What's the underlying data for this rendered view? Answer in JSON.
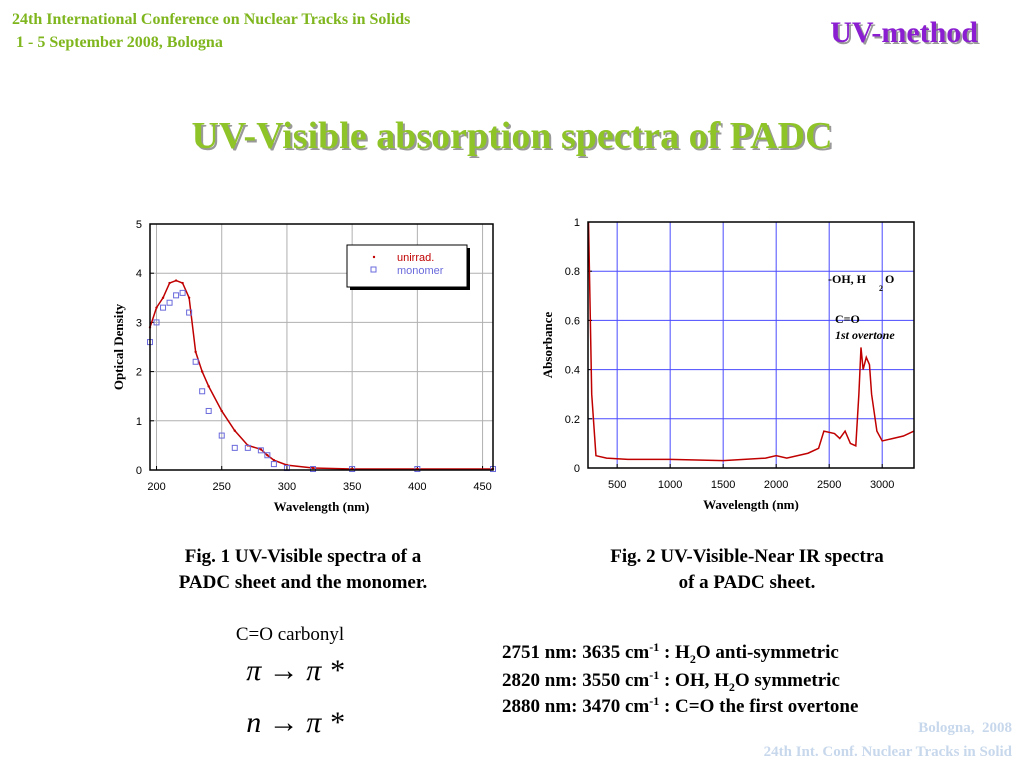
{
  "header": {
    "conference": "24th International Conference on Nuclear Tracks in Solids",
    "dates": " 1 - 5 September 2008, Bologna",
    "section": "UV-method"
  },
  "title": "UV-Visible absorption spectra of PADC",
  "chart_data": [
    {
      "type": "line",
      "x_label": "Wavelength (nm)",
      "y_label": "Optical Density",
      "x": [
        195,
        200,
        205,
        210,
        215,
        220,
        225,
        230,
        235,
        240,
        250,
        260,
        270,
        280,
        285,
        290,
        300,
        320,
        350,
        400,
        458
      ],
      "series": [
        {
          "name": "unirrad.",
          "color": "#c00000",
          "values": [
            2.9,
            3.3,
            3.5,
            3.8,
            3.85,
            3.8,
            3.5,
            2.4,
            2.0,
            1.7,
            1.2,
            0.8,
            0.5,
            0.42,
            0.3,
            0.2,
            0.1,
            0.04,
            0.02,
            0.02,
            0.02
          ]
        },
        {
          "name": "monomer",
          "color": "#6a6adc",
          "values": [
            2.6,
            3.0,
            3.3,
            3.4,
            3.55,
            3.6,
            3.2,
            2.2,
            1.6,
            1.2,
            0.7,
            0.45,
            0.45,
            0.4,
            0.3,
            0.12,
            0.04,
            0.02,
            0.02,
            0.02,
            0.02
          ]
        }
      ],
      "xlim": [
        195,
        458
      ],
      "ylim": [
        0,
        5
      ],
      "xticks": [
        200,
        250,
        300,
        350,
        400,
        450
      ],
      "yticks": [
        0,
        1,
        2,
        3,
        4,
        5
      ],
      "grid": true,
      "grid_color": "#b0b0b0",
      "legend": "upper right"
    },
    {
      "type": "line",
      "x_label": "Wavelength (nm)",
      "y_label": "Absorbance",
      "x": [
        230,
        260,
        300,
        400,
        600,
        1000,
        1500,
        1900,
        2000,
        2100,
        2300,
        2400,
        2450,
        2550,
        2600,
        2650,
        2700,
        2751,
        2780,
        2800,
        2820,
        2850,
        2880,
        2900,
        2950,
        3000,
        3100,
        3200,
        3300
      ],
      "series": [
        {
          "name": null,
          "color": "#c00000",
          "values": [
            1.0,
            0.3,
            0.05,
            0.04,
            0.035,
            0.035,
            0.03,
            0.04,
            0.05,
            0.04,
            0.06,
            0.08,
            0.15,
            0.14,
            0.12,
            0.15,
            0.1,
            0.09,
            0.3,
            0.49,
            0.4,
            0.45,
            0.42,
            0.3,
            0.15,
            0.11,
            0.12,
            0.13,
            0.15
          ]
        }
      ],
      "xlim": [
        225,
        3300
      ],
      "ylim": [
        0,
        1
      ],
      "xticks": [
        500,
        1000,
        1500,
        2000,
        2500,
        3000
      ],
      "yticks": [
        0,
        0.2,
        0.4,
        0.6,
        0.8,
        1
      ],
      "grid": true,
      "grid_color": "#4a4aff",
      "legend": null,
      "annotations": [
        "-OH, H",
        "2",
        "O",
        "C=O",
        "1st overtone"
      ]
    }
  ],
  "captions": [
    "Fig. 1 UV-Visible spectra of a",
    "PADC sheet and the monomer.",
    "Fig. 2 UV-Visible-Near IR spectra",
    "of a PADC sheet."
  ],
  "transitions": {
    "label": "C=O carbonyl",
    "items": [
      "π → π *",
      "n → π *"
    ]
  },
  "assignments": [
    [
      "2751 nm: 3635 cm",
      "-1",
      " : H",
      "2",
      "O anti-symmetric"
    ],
    [
      "2820 nm: 3550 cm",
      "-1",
      " : OH, H",
      "2",
      "O symmetric"
    ],
    [
      "2880 nm: 3470 cm",
      "-1",
      " : C=O the first overtone"
    ]
  ],
  "footer": [
    "Bologna,  2008",
    "24th Int. Conf. Nuclear Tracks in Solid"
  ]
}
